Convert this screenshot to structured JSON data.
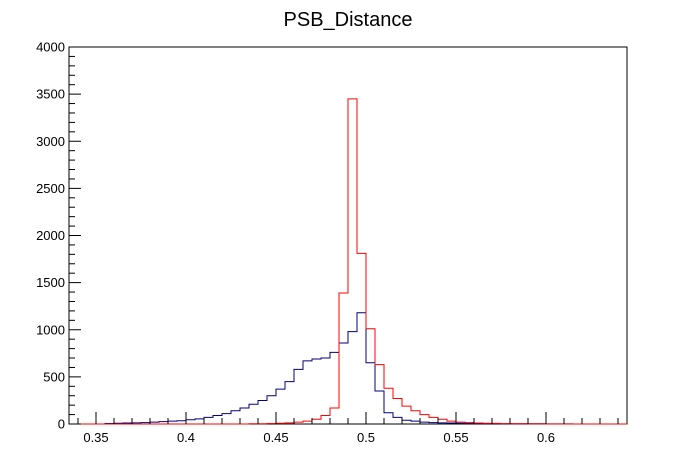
{
  "chart_data": {
    "type": "histogram",
    "title": "PSB_Distance",
    "xlabel": "",
    "ylabel": "",
    "xlim": [
      0.335,
      0.645
    ],
    "ylim": [
      0,
      4000
    ],
    "grid": false,
    "bin_width": 0.005,
    "x_ticks": [
      {
        "value": 0.35,
        "label": "0.35"
      },
      {
        "value": 0.4,
        "label": "0.4"
      },
      {
        "value": 0.45,
        "label": "0.45"
      },
      {
        "value": 0.5,
        "label": "0.5"
      },
      {
        "value": 0.55,
        "label": "0.55"
      },
      {
        "value": 0.6,
        "label": "0.6"
      }
    ],
    "y_ticks": [
      {
        "value": 0,
        "label": "0"
      },
      {
        "value": 500,
        "label": "500"
      },
      {
        "value": 1000,
        "label": "1000"
      },
      {
        "value": 1500,
        "label": "1500"
      },
      {
        "value": 2000,
        "label": "2000"
      },
      {
        "value": 2500,
        "label": "2500"
      },
      {
        "value": 3000,
        "label": "3000"
      },
      {
        "value": 3500,
        "label": "3500"
      },
      {
        "value": 4000,
        "label": "4000"
      }
    ],
    "series": [
      {
        "color": "#000080",
        "bin_edges_start": 0.34,
        "counts": [
          0,
          0,
          0,
          5,
          8,
          10,
          12,
          15,
          20,
          25,
          30,
          35,
          45,
          55,
          70,
          90,
          110,
          140,
          170,
          210,
          250,
          300,
          370,
          450,
          580,
          670,
          690,
          700,
          760,
          860,
          980,
          1180,
          650,
          350,
          120,
          70,
          40,
          30,
          20,
          15,
          12,
          10,
          8,
          6,
          5,
          5,
          4,
          3,
          3,
          2,
          2,
          2,
          1,
          1,
          1,
          0,
          0,
          0,
          0,
          0,
          0
        ]
      },
      {
        "color": "#ff0000",
        "bin_edges_start": 0.34,
        "counts": [
          0,
          0,
          0,
          0,
          0,
          0,
          0,
          0,
          0,
          0,
          0,
          0,
          0,
          0,
          0,
          0,
          0,
          0,
          0,
          2,
          3,
          5,
          8,
          12,
          20,
          30,
          50,
          90,
          170,
          1390,
          3450,
          1810,
          1010,
          630,
          380,
          270,
          190,
          140,
          100,
          70,
          50,
          30,
          20,
          15,
          10,
          8,
          6,
          4,
          3,
          2,
          1,
          1,
          0,
          0,
          0,
          0,
          0,
          0,
          0,
          0,
          0
        ]
      }
    ]
  }
}
